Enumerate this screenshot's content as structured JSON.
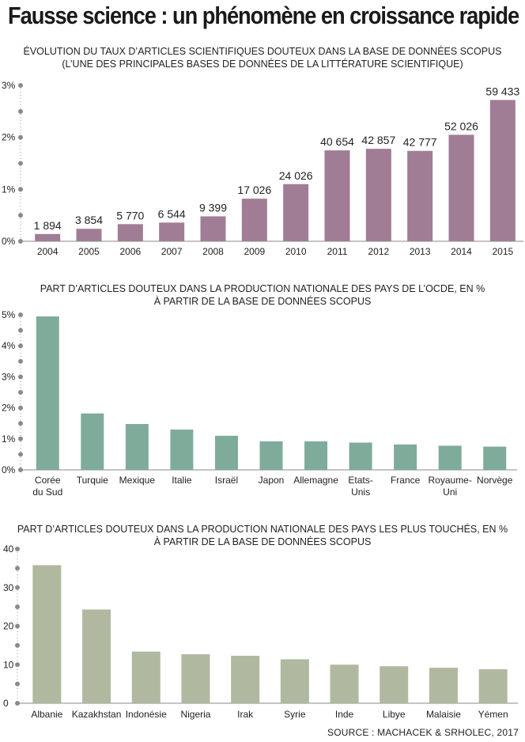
{
  "page": {
    "title": "Fausse science : un phénomène en croissance rapide",
    "source": "SOURCE : MACHACEK & SRHOLEC, 2017"
  },
  "chart_data": [
    {
      "type": "bar",
      "subtitle_lines": [
        "ÉVOLUTION DU TAUX D’ARTICLES SCIENTIFIQUES DOUTEUX DANS LA BASE DE DONNÉES SCOPUS",
        "(L’UNE DES PRINCIPALES BASES DE DONNÉES DE LA LITTÉRATURE SCIENTIFIQUE)"
      ],
      "categories": [
        "2004",
        "2005",
        "2006",
        "2007",
        "2008",
        "2009",
        "2010",
        "2011",
        "2012",
        "2013",
        "2014",
        "2015"
      ],
      "values": [
        0.14,
        0.24,
        0.33,
        0.36,
        0.48,
        0.82,
        1.1,
        1.75,
        1.78,
        1.74,
        2.05,
        2.72
      ],
      "data_labels": [
        "1 894",
        "3 854",
        "5 770",
        "6 544",
        "9 399",
        "17 026",
        "24 026",
        "40 654",
        "42 857",
        "42 777",
        "52 026",
        "59 433"
      ],
      "ylim": [
        0,
        3
      ],
      "yticks": [
        0,
        1,
        2,
        3
      ],
      "ytick_labels": [
        "0%",
        "1%",
        "2%",
        "3%"
      ],
      "color": "#a07d95"
    },
    {
      "type": "bar",
      "subtitle_lines": [
        "PART D’ARTICLES DOUTEUX DANS LA PRODUCTION NATIONALE DES PAYS DE L’OCDE, EN %",
        "À PARTIR DE LA BASE DE DONNÉES SCOPUS"
      ],
      "categories": [
        [
          "Corée",
          "du Sud"
        ],
        [
          "Turquie"
        ],
        [
          "Mexique"
        ],
        [
          "Italie"
        ],
        [
          "Israël"
        ],
        [
          "Japon"
        ],
        [
          "Allemagne"
        ],
        [
          "Etats-",
          "Unis"
        ],
        [
          "France"
        ],
        [
          "Royaume-",
          "Uni"
        ],
        [
          "Norvège"
        ]
      ],
      "values": [
        4.95,
        1.82,
        1.48,
        1.3,
        1.1,
        0.92,
        0.92,
        0.88,
        0.82,
        0.78,
        0.75
      ],
      "ylim": [
        0,
        5
      ],
      "yticks": [
        0,
        1,
        2,
        3,
        4,
        5
      ],
      "ytick_labels": [
        "0%",
        "1%",
        "2%",
        "3%",
        "4%",
        "5%"
      ],
      "color": "#7fac9a"
    },
    {
      "type": "bar",
      "subtitle_lines": [
        "PART D’ARTICLES DOUTEUX DANS LA PRODUCTION NATIONALE DES PAYS LES PLUS TOUCHÉS, EN %",
        "À PARTIR DE LA BASE DE DONNÉES SCOPUS"
      ],
      "categories": [
        [
          "Albanie"
        ],
        [
          "Kazakhstan"
        ],
        [
          "Indonésie"
        ],
        [
          "Nigeria"
        ],
        [
          "Irak"
        ],
        [
          "Syrie"
        ],
        [
          "Inde"
        ],
        [
          "Libye"
        ],
        [
          "Malaisie"
        ],
        [
          "Yémen"
        ]
      ],
      "values": [
        35.8,
        24.3,
        13.4,
        12.7,
        12.3,
        11.4,
        10.0,
        9.6,
        9.2,
        8.8
      ],
      "ylim": [
        0,
        40
      ],
      "yticks": [
        0,
        10,
        20,
        30,
        40
      ],
      "ytick_labels": [
        "0",
        "10",
        "20",
        "30",
        "40"
      ],
      "color": "#b0b89f"
    }
  ]
}
